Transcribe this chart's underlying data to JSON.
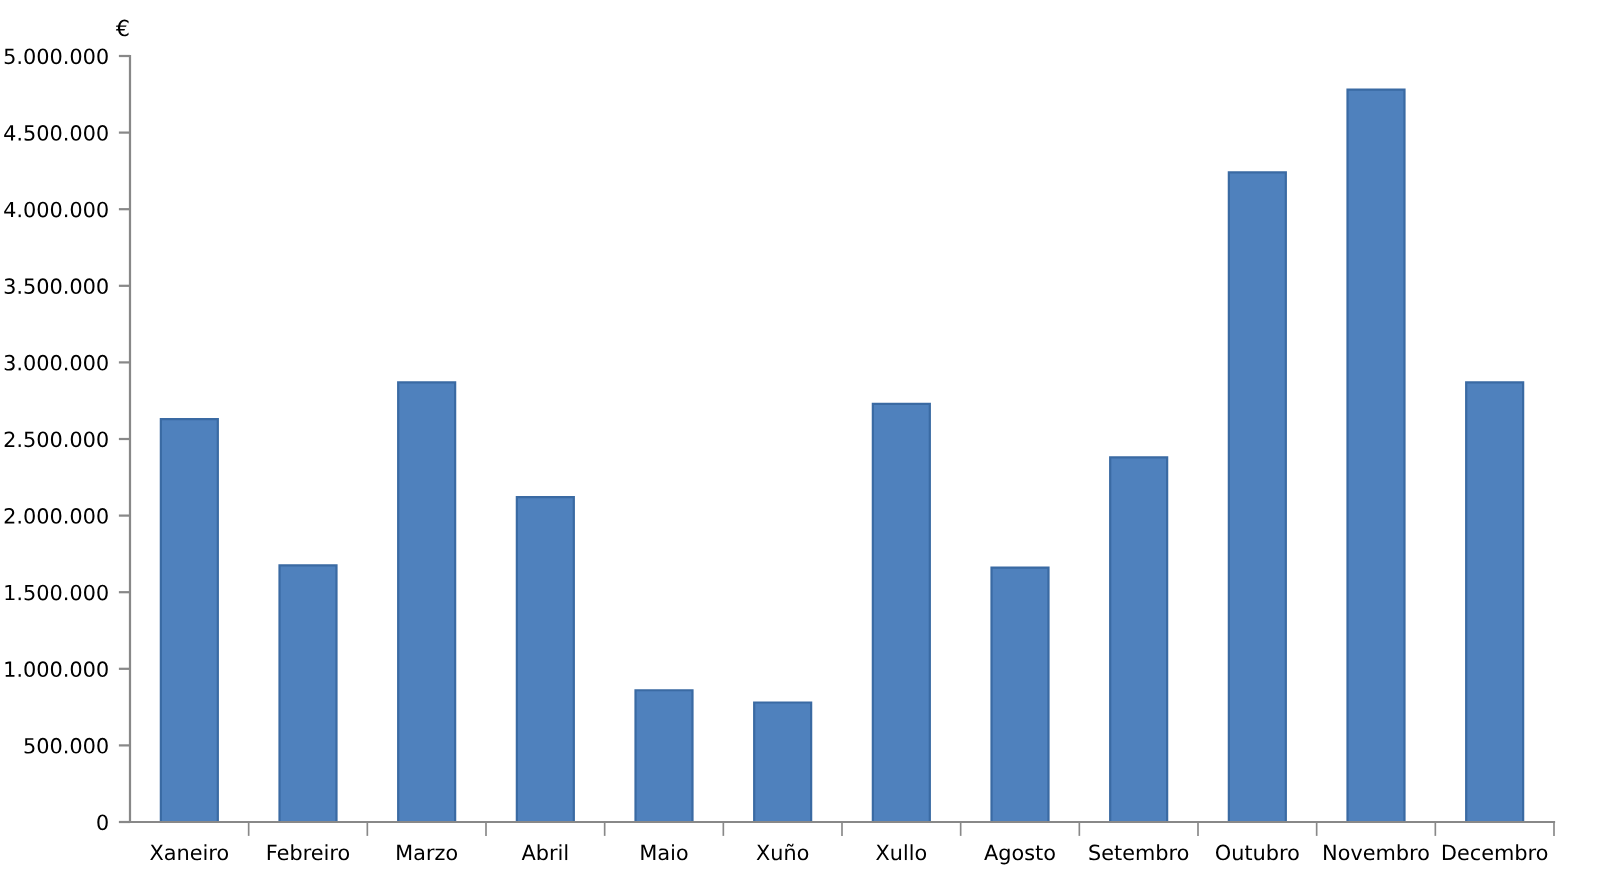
{
  "chart_data": {
    "type": "bar",
    "ylabel": "€",
    "categories": [
      "Xaneiro",
      "Febreiro",
      "Marzo",
      "Abril",
      "Maio",
      "Xuño",
      "Xullo",
      "Agosto",
      "Setembro",
      "Outubro",
      "Novembro",
      "Decembro"
    ],
    "values": [
      2630000,
      1675000,
      2870000,
      2120000,
      860000,
      780000,
      2730000,
      1660000,
      2380000,
      4240000,
      4780000,
      2870000
    ],
    "color": "#4f81bd",
    "ylim": [
      0,
      5000000
    ],
    "yticks": [
      {
        "value": 0,
        "label": "0"
      },
      {
        "value": 500000,
        "label": "500.000"
      },
      {
        "value": 1000000,
        "label": "1.000.000"
      },
      {
        "value": 1500000,
        "label": "1.500.000"
      },
      {
        "value": 2000000,
        "label": "2.000.000"
      },
      {
        "value": 2500000,
        "label": "2.500.000"
      },
      {
        "value": 3000000,
        "label": "3.000.000"
      },
      {
        "value": 3500000,
        "label": "3.500.000"
      },
      {
        "value": 4000000,
        "label": "4.000.000"
      },
      {
        "value": 4500000,
        "label": "4.500.000"
      },
      {
        "value": 5000000,
        "label": "5.000.000"
      }
    ],
    "grid": false
  }
}
